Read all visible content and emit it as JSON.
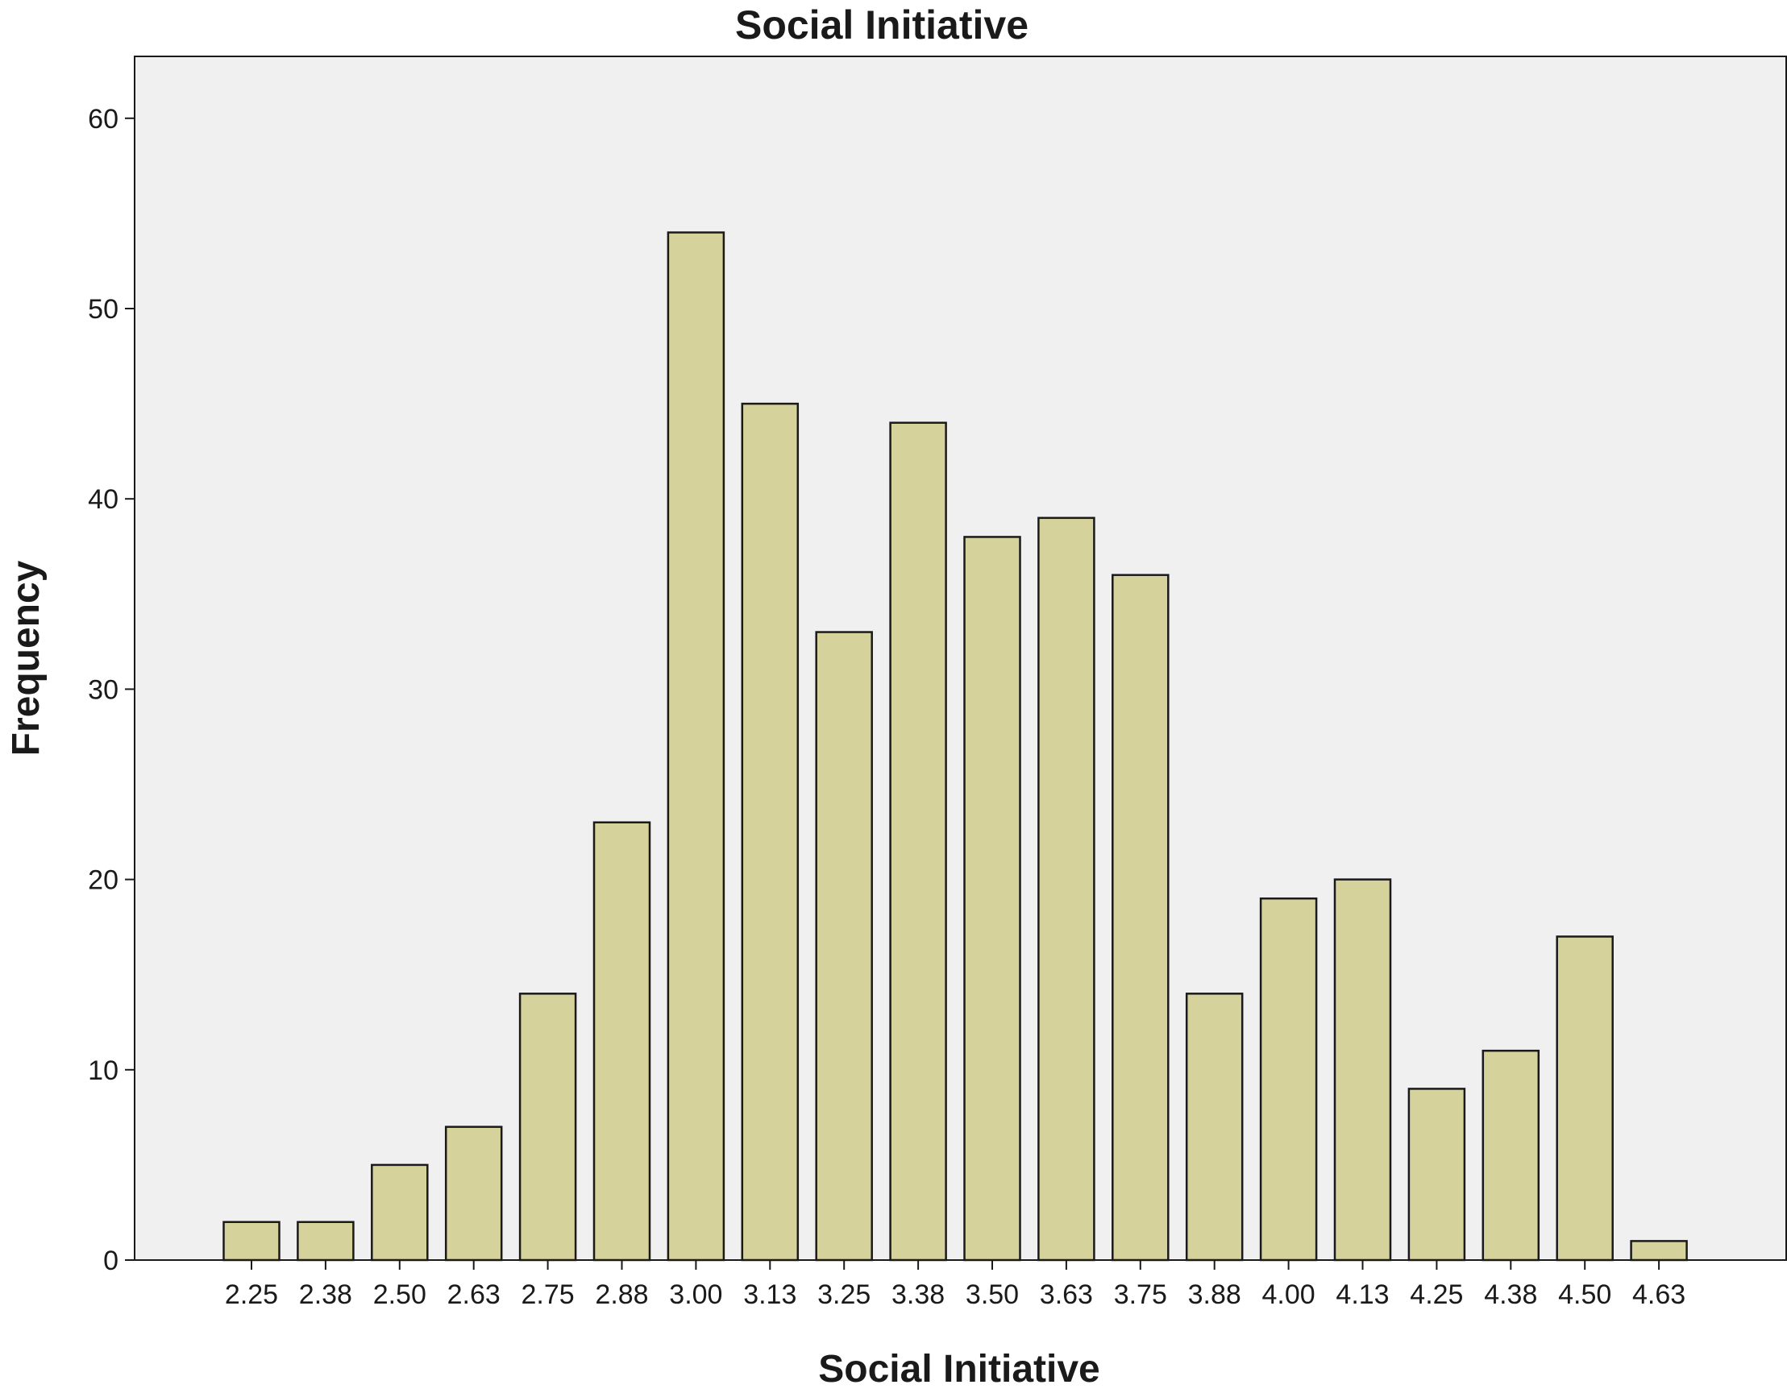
{
  "chart_data": {
    "type": "bar",
    "title": "Social Initiative",
    "xlabel": "Social Initiative",
    "ylabel": "Frequency",
    "categories": [
      "2.25",
      "2.38",
      "2.50",
      "2.63",
      "2.75",
      "2.88",
      "3.00",
      "3.13",
      "3.25",
      "3.38",
      "3.50",
      "3.63",
      "3.75",
      "3.88",
      "4.00",
      "4.13",
      "4.25",
      "4.38",
      "4.50",
      "4.63"
    ],
    "values": [
      2,
      2,
      5,
      7,
      14,
      23,
      54,
      45,
      33,
      44,
      38,
      39,
      36,
      14,
      19,
      20,
      9,
      11,
      17,
      1
    ],
    "yticks": [
      "0",
      "10",
      "20",
      "30",
      "40",
      "50",
      "60"
    ],
    "ylim": [
      0,
      63
    ],
    "grid": false,
    "colors": {
      "bar_fill": "#d6d29c",
      "bar_stroke": "#1a1a1a",
      "plot_background": "#f0f0f0"
    }
  }
}
